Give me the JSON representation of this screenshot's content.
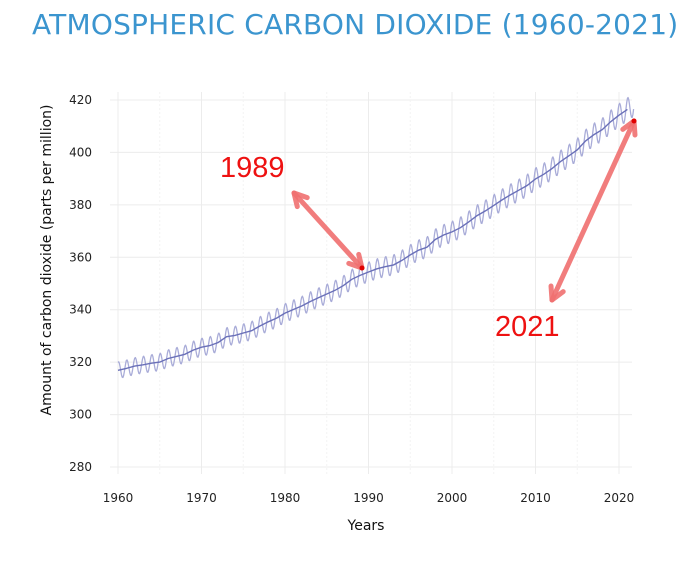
{
  "chart_data": {
    "type": "line",
    "title": "ATMOSPHERIC CARBON DIOXIDE (1960-2021)",
    "xlabel": "Years",
    "ylabel": "Amount of carbon dioxide (parts per million)",
    "xlim": [
      1959,
      2022
    ],
    "ylim": [
      280,
      425
    ],
    "x_ticks": [
      1960,
      1970,
      1980,
      1990,
      2000,
      2010,
      2020
    ],
    "y_ticks": [
      280,
      300,
      320,
      340,
      360,
      380,
      400,
      420
    ],
    "grid": true,
    "series": [
      {
        "role": "annual trend",
        "x": [
          1960,
          1961,
          1962,
          1963,
          1964,
          1965,
          1966,
          1967,
          1968,
          1969,
          1970,
          1971,
          1972,
          1973,
          1974,
          1975,
          1976,
          1977,
          1978,
          1979,
          1980,
          1981,
          1982,
          1983,
          1984,
          1985,
          1986,
          1987,
          1988,
          1989,
          1990,
          1991,
          1992,
          1993,
          1994,
          1995,
          1996,
          1997,
          1998,
          1999,
          2000,
          2001,
          2002,
          2003,
          2004,
          2005,
          2006,
          2007,
          2008,
          2009,
          2010,
          2011,
          2012,
          2013,
          2014,
          2015,
          2016,
          2017,
          2018,
          2019,
          2020,
          2021
        ],
        "values": [
          316.9,
          317.6,
          318.5,
          319.0,
          319.6,
          320.0,
          321.4,
          322.2,
          323.0,
          324.6,
          325.7,
          326.3,
          327.5,
          329.7,
          330.2,
          331.1,
          332.0,
          333.8,
          335.4,
          336.8,
          338.7,
          340.1,
          341.4,
          343.1,
          344.6,
          346.0,
          347.4,
          349.2,
          351.6,
          353.1,
          354.4,
          355.6,
          356.4,
          357.1,
          358.8,
          360.9,
          362.7,
          363.8,
          366.8,
          368.5,
          369.7,
          371.3,
          373.5,
          375.9,
          377.7,
          379.8,
          381.9,
          383.8,
          385.6,
          387.4,
          389.9,
          391.7,
          393.9,
          396.5,
          398.7,
          401.0,
          404.4,
          406.8,
          408.7,
          411.7,
          414.2,
          416.4
        ],
        "color": "#6a70b8"
      },
      {
        "role": "monthly seasonal",
        "seasonal_amplitude": 3.2,
        "color": "#a9acd8"
      }
    ],
    "annotations": [
      {
        "label": "1989",
        "arrow_color": "#f07070"
      },
      {
        "label": "2021",
        "arrow_color": "#f07070"
      }
    ]
  }
}
